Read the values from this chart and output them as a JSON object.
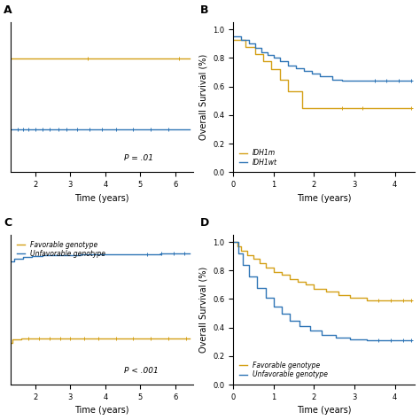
{
  "panel_A": {
    "label": "A",
    "gold_x": [
      0,
      0.05,
      0.05,
      1.0,
      1.0,
      6.4
    ],
    "gold_y": [
      1.0,
      1.0,
      0.83,
      0.83,
      0.83,
      0.83
    ],
    "gold_censors": [
      3.5,
      6.1
    ],
    "blue_x": [
      0,
      0.05,
      0.05,
      0.15,
      0.15,
      0.3,
      0.3,
      0.5,
      0.5,
      6.4
    ],
    "blue_y": [
      0.62,
      0.62,
      0.55,
      0.55,
      0.53,
      0.53,
      0.51,
      0.51,
      0.5,
      0.5
    ],
    "blue_censors": [
      0.6,
      0.8,
      1.0,
      1.15,
      1.3,
      1.5,
      1.65,
      1.8,
      2.0,
      2.2,
      2.4,
      2.65,
      2.9,
      3.2,
      3.55,
      3.9,
      4.3,
      4.8,
      5.3,
      5.8
    ],
    "pvalue": "P = .01",
    "xlim": [
      1.3,
      6.5
    ],
    "ylim": [
      0.3,
      1.0
    ],
    "xticks": [
      2,
      3,
      4,
      5,
      6
    ],
    "yticks": [],
    "xlabel": "Time (years)",
    "ylabel": ""
  },
  "panel_B": {
    "label": "B",
    "gold_x": [
      0,
      0.3,
      0.3,
      0.55,
      0.55,
      0.75,
      0.75,
      0.95,
      0.95,
      1.15,
      1.15,
      1.35,
      1.35,
      1.7,
      1.7,
      2.3,
      2.3,
      4.4
    ],
    "gold_y": [
      0.93,
      0.93,
      0.88,
      0.88,
      0.83,
      0.83,
      0.78,
      0.78,
      0.72,
      0.72,
      0.65,
      0.65,
      0.57,
      0.57,
      0.45,
      0.45,
      0.45,
      0.45
    ],
    "gold_censors": [
      2.7,
      3.2,
      4.4
    ],
    "blue_x": [
      0,
      0.2,
      0.2,
      0.4,
      0.4,
      0.55,
      0.55,
      0.7,
      0.7,
      0.85,
      0.85,
      1.0,
      1.0,
      1.15,
      1.15,
      1.35,
      1.35,
      1.55,
      1.55,
      1.75,
      1.75,
      1.95,
      1.95,
      2.15,
      2.15,
      2.45,
      2.45,
      2.7,
      2.7,
      3.0,
      3.0,
      3.3,
      3.3,
      4.4
    ],
    "blue_y": [
      0.95,
      0.95,
      0.93,
      0.93,
      0.9,
      0.9,
      0.87,
      0.87,
      0.84,
      0.84,
      0.82,
      0.82,
      0.8,
      0.8,
      0.78,
      0.78,
      0.75,
      0.75,
      0.73,
      0.73,
      0.71,
      0.71,
      0.69,
      0.69,
      0.67,
      0.67,
      0.65,
      0.65,
      0.64,
      0.64,
      0.64,
      0.64,
      0.64,
      0.64
    ],
    "blue_censors": [
      3.5,
      3.8,
      4.1,
      4.4
    ],
    "pvalue": "",
    "xlim": [
      0,
      4.5
    ],
    "ylim": [
      0.0,
      1.05
    ],
    "xticks": [
      0,
      1,
      2,
      3,
      4
    ],
    "yticks": [
      0.0,
      0.2,
      0.4,
      0.6,
      0.8,
      1.0
    ],
    "xlabel": "Time (years)",
    "ylabel": "Overall Survival (%)",
    "legend": [
      "IDH1m",
      "IDH1wt"
    ]
  },
  "panel_C": {
    "label": "C",
    "gold_x": [
      0,
      0.2,
      0.2,
      0.4,
      0.4,
      0.65,
      0.65,
      0.9,
      0.9,
      1.1,
      1.1,
      1.35,
      1.35,
      1.6,
      1.6,
      6.4
    ],
    "gold_y": [
      0.15,
      0.15,
      0.22,
      0.22,
      0.27,
      0.27,
      0.3,
      0.3,
      0.33,
      0.33,
      0.35,
      0.35,
      0.37,
      0.37,
      0.38,
      0.38
    ],
    "gold_censors": [
      1.8,
      2.1,
      2.4,
      2.7,
      3.0,
      3.4,
      3.8,
      4.3,
      4.8,
      5.3,
      5.8,
      6.3
    ],
    "blue_x": [
      0,
      0.1,
      0.1,
      0.2,
      0.2,
      0.35,
      0.35,
      0.5,
      0.5,
      0.65,
      0.65,
      0.8,
      0.8,
      1.0,
      1.0,
      1.2,
      1.2,
      1.4,
      1.4,
      1.65,
      1.65,
      1.9,
      1.9,
      2.2,
      2.2,
      2.55,
      2.55,
      2.9,
      2.9,
      3.3,
      3.3,
      3.8,
      3.8,
      4.4,
      4.4,
      5.0,
      5.0,
      5.6,
      5.6,
      6.2,
      6.2,
      6.4
    ],
    "blue_y": [
      0.35,
      0.35,
      0.5,
      0.5,
      0.6,
      0.6,
      0.68,
      0.68,
      0.74,
      0.74,
      0.78,
      0.78,
      0.81,
      0.81,
      0.83,
      0.83,
      0.84,
      0.84,
      0.855,
      0.855,
      0.865,
      0.865,
      0.87,
      0.87,
      0.875,
      0.875,
      0.878,
      0.878,
      0.88,
      0.88,
      0.882,
      0.882,
      0.883,
      0.883,
      0.884,
      0.884,
      0.885,
      0.885,
      0.886,
      0.886,
      0.886,
      0.886
    ],
    "blue_censors": [
      5.2,
      5.6,
      5.95,
      6.25
    ],
    "pvalue": "P < .001",
    "xlim": [
      1.3,
      6.5
    ],
    "ylim": [
      0.1,
      1.0
    ],
    "xticks": [
      2,
      3,
      4,
      5,
      6
    ],
    "yticks": [],
    "xlabel": "Time (years)",
    "ylabel": "",
    "legend": [
      "Favorable genotype",
      "Unfavorable genotype"
    ]
  },
  "panel_D": {
    "label": "D",
    "gold_x": [
      0,
      0.1,
      0.1,
      0.2,
      0.2,
      0.35,
      0.35,
      0.5,
      0.5,
      0.65,
      0.65,
      0.8,
      0.8,
      1.0,
      1.0,
      1.2,
      1.2,
      1.4,
      1.4,
      1.6,
      1.6,
      1.8,
      1.8,
      2.0,
      2.0,
      2.3,
      2.3,
      2.6,
      2.6,
      2.9,
      2.9,
      3.3,
      3.3,
      4.4
    ],
    "gold_y": [
      1.0,
      1.0,
      0.97,
      0.97,
      0.94,
      0.94,
      0.91,
      0.91,
      0.88,
      0.88,
      0.85,
      0.85,
      0.82,
      0.82,
      0.79,
      0.79,
      0.77,
      0.77,
      0.74,
      0.74,
      0.72,
      0.72,
      0.7,
      0.7,
      0.67,
      0.67,
      0.65,
      0.65,
      0.63,
      0.63,
      0.61,
      0.61,
      0.59,
      0.59
    ],
    "gold_censors": [
      3.6,
      3.9,
      4.2,
      4.4
    ],
    "blue_x": [
      0,
      0.12,
      0.12,
      0.25,
      0.25,
      0.4,
      0.4,
      0.6,
      0.6,
      0.8,
      0.8,
      1.0,
      1.0,
      1.2,
      1.2,
      1.4,
      1.4,
      1.65,
      1.65,
      1.9,
      1.9,
      2.2,
      2.2,
      2.55,
      2.55,
      2.9,
      2.9,
      3.3,
      3.3,
      4.4
    ],
    "blue_y": [
      1.0,
      1.0,
      0.92,
      0.92,
      0.84,
      0.84,
      0.76,
      0.76,
      0.68,
      0.68,
      0.61,
      0.61,
      0.55,
      0.55,
      0.5,
      0.5,
      0.45,
      0.45,
      0.41,
      0.41,
      0.38,
      0.38,
      0.35,
      0.35,
      0.33,
      0.33,
      0.32,
      0.32,
      0.31,
      0.31
    ],
    "blue_censors": [
      3.6,
      3.9,
      4.2,
      4.4
    ],
    "pvalue": "",
    "xlim": [
      0,
      4.5
    ],
    "ylim": [
      0.0,
      1.05
    ],
    "xticks": [
      0,
      1,
      2,
      3,
      4
    ],
    "yticks": [
      0.0,
      0.2,
      0.4,
      0.6,
      0.8,
      1.0
    ],
    "xlabel": "Time (years)",
    "ylabel": "Overall Survival (%)",
    "legend": [
      "Favorable genotype",
      "Unfavorable genotype"
    ]
  },
  "gold_color": "#D4A017",
  "blue_color": "#2E75B6",
  "bg_color": "#FFFFFF",
  "font_size": 7,
  "tick_font_size": 6,
  "label_font_size": 9
}
